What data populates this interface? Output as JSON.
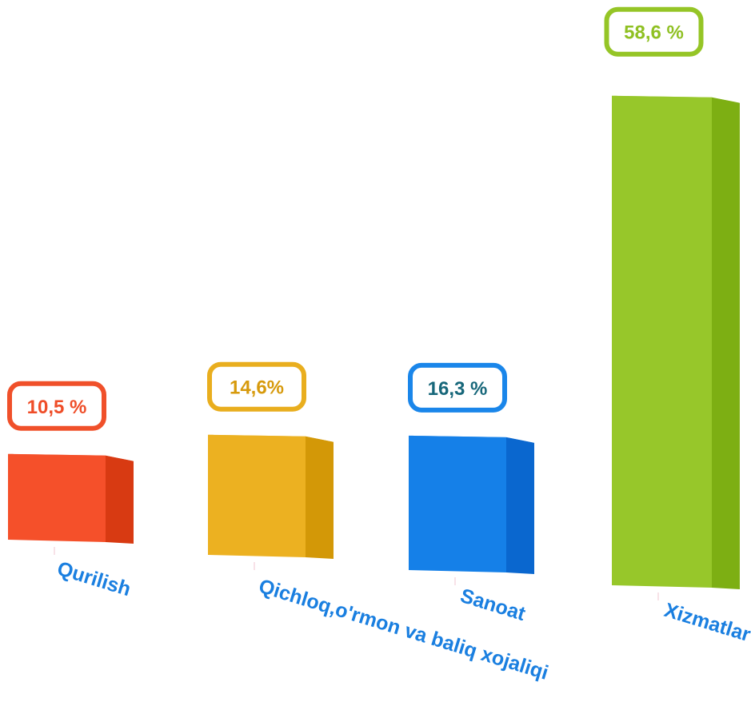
{
  "chart_data": {
    "type": "bar",
    "categories": [
      "Qurilish",
      "Qichloq,o'rmon va baliq xojaliqi",
      "Sanoat",
      "Xizmatlar"
    ],
    "values": [
      10.5,
      14.6,
      16.3,
      58.6
    ],
    "value_labels": [
      "10,5 %",
      "14,6%",
      "16,3 %",
      "58,6 %"
    ],
    "unit": "%",
    "colors": [
      {
        "front": "#f5502a",
        "side": "#d83a12",
        "top": "#f78060",
        "label_border": "#f0502a",
        "label_text": "#ef4d28"
      },
      {
        "front": "#ecb121",
        "side": "#d39807",
        "top": "#f3c95a",
        "label_border": "#e9ae1e",
        "label_text": "#d79a0c"
      },
      {
        "front": "#1580e8",
        "side": "#0a67cf",
        "top": "#4ea0f0",
        "label_border": "#1a86ea",
        "label_text": "#17677a"
      },
      {
        "front": "#97c72a",
        "side": "#7daf13",
        "top": "#b7dc62",
        "label_border": "#95c526",
        "label_text": "#8fc022"
      }
    ],
    "category_label_color": "#1a7fe0",
    "grid": false,
    "legend": "none"
  }
}
